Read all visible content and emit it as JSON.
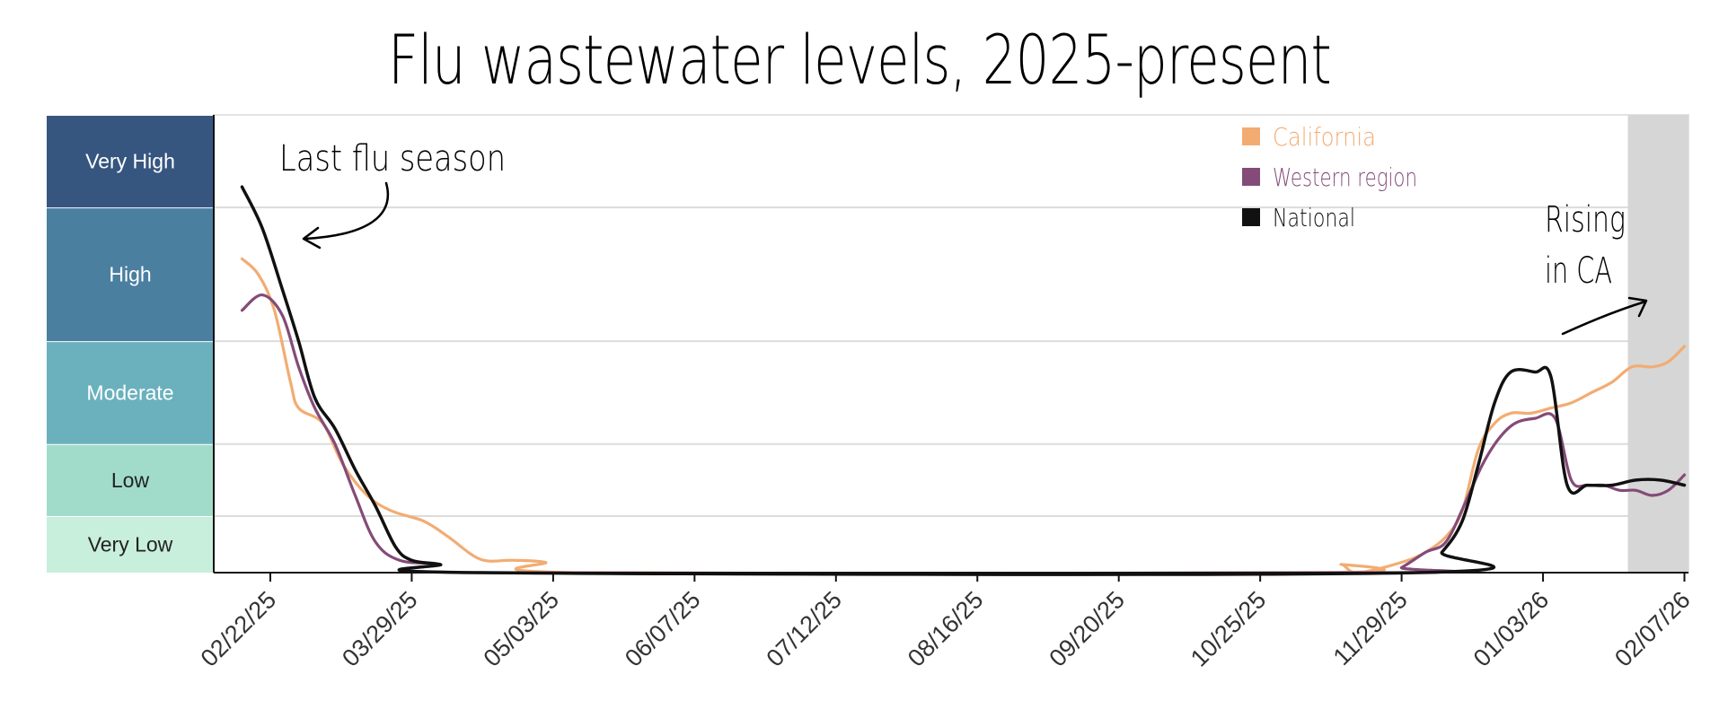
{
  "chart_data": {
    "type": "line",
    "title": "Flu wastewater levels, 2025-present",
    "xlabel": "",
    "ylabel": "",
    "x_start": "2025-02-08",
    "x_end": "2026-02-08",
    "y_range": [
      0,
      5
    ],
    "x_ticks": [
      "02/22/25",
      "03/29/25",
      "05/03/25",
      "06/07/25",
      "07/12/25",
      "08/16/25",
      "09/20/25",
      "10/25/25",
      "11/29/25",
      "01/03/26",
      "02/07/26"
    ],
    "levels": [
      {
        "label": "Very Low",
        "min": 0.0,
        "max": 0.55,
        "color": "#c8efdc",
        "text_color": "#222222"
      },
      {
        "label": "Low",
        "min": 0.55,
        "max": 1.25,
        "color": "#a1dcca",
        "text_color": "#222222"
      },
      {
        "label": "Moderate",
        "min": 1.25,
        "max": 2.25,
        "color": "#6ab1bd",
        "text_color": "#ffffff"
      },
      {
        "label": "High",
        "min": 2.25,
        "max": 3.55,
        "color": "#4a7fa0",
        "text_color": "#ffffff"
      },
      {
        "label": "Very High",
        "min": 3.55,
        "max": 4.45,
        "color": "#365680",
        "text_color": "#ffffff"
      }
    ],
    "shaded_period": {
      "start": "2026-01-24",
      "end": "2026-02-08",
      "color": "#d6d6d6"
    },
    "legend_position": "top-right",
    "grid": "horizontal",
    "series": [
      {
        "name": "California",
        "color": "#f2ac72",
        "points": [
          [
            "2025-02-15",
            3.05
          ],
          [
            "2025-02-19",
            2.9
          ],
          [
            "2025-02-23",
            2.55
          ],
          [
            "2025-02-27",
            1.85
          ],
          [
            "2025-03-01",
            1.6
          ],
          [
            "2025-03-07",
            1.45
          ],
          [
            "2025-03-12",
            1.05
          ],
          [
            "2025-03-18",
            0.75
          ],
          [
            "2025-03-24",
            0.6
          ],
          [
            "2025-04-01",
            0.5
          ],
          [
            "2025-04-07",
            0.35
          ],
          [
            "2025-04-15",
            0.13
          ],
          [
            "2025-04-23",
            0.12
          ],
          [
            "2025-05-01",
            0.1
          ],
          [
            "2025-05-10",
            0.0
          ],
          [
            "2025-11-10",
            0.0
          ],
          [
            "2025-11-14",
            0.08
          ],
          [
            "2025-11-18",
            0.0
          ],
          [
            "2025-11-29",
            0.1
          ],
          [
            "2025-12-05",
            0.2
          ],
          [
            "2025-12-10",
            0.35
          ],
          [
            "2025-12-14",
            0.6
          ],
          [
            "2025-12-18",
            1.2
          ],
          [
            "2025-12-22",
            1.45
          ],
          [
            "2025-12-26",
            1.55
          ],
          [
            "2025-12-31",
            1.55
          ],
          [
            "2026-01-05",
            1.6
          ],
          [
            "2026-01-10",
            1.65
          ],
          [
            "2026-01-15",
            1.75
          ],
          [
            "2026-01-20",
            1.85
          ],
          [
            "2026-01-25",
            2.0
          ],
          [
            "2026-01-30",
            2.0
          ],
          [
            "2026-02-03",
            2.05
          ],
          [
            "2026-02-07",
            2.2
          ]
        ]
      },
      {
        "name": "Western region",
        "color": "#844b78",
        "points": [
          [
            "2025-02-15",
            2.55
          ],
          [
            "2025-02-20",
            2.7
          ],
          [
            "2025-02-25",
            2.5
          ],
          [
            "2025-03-01",
            2.0
          ],
          [
            "2025-03-05",
            1.6
          ],
          [
            "2025-03-10",
            1.25
          ],
          [
            "2025-03-15",
            0.75
          ],
          [
            "2025-03-20",
            0.3
          ],
          [
            "2025-03-26",
            0.12
          ],
          [
            "2025-04-05",
            0.08
          ],
          [
            "2025-04-15",
            0.0
          ],
          [
            "2025-11-25",
            0.0
          ],
          [
            "2025-11-29",
            0.05
          ],
          [
            "2025-12-05",
            0.2
          ],
          [
            "2025-12-10",
            0.3
          ],
          [
            "2025-12-15",
            0.7
          ],
          [
            "2025-12-19",
            1.05
          ],
          [
            "2025-12-23",
            1.3
          ],
          [
            "2025-12-27",
            1.45
          ],
          [
            "2026-01-01",
            1.5
          ],
          [
            "2026-01-06",
            1.5
          ],
          [
            "2026-01-10",
            0.9
          ],
          [
            "2026-01-14",
            0.85
          ],
          [
            "2026-01-18",
            0.85
          ],
          [
            "2026-01-22",
            0.8
          ],
          [
            "2026-01-26",
            0.8
          ],
          [
            "2026-01-30",
            0.75
          ],
          [
            "2026-02-03",
            0.8
          ],
          [
            "2026-02-07",
            0.95
          ]
        ]
      },
      {
        "name": "National",
        "color": "#111111",
        "points": [
          [
            "2025-02-15",
            3.75
          ],
          [
            "2025-02-20",
            3.35
          ],
          [
            "2025-02-25",
            2.75
          ],
          [
            "2025-03-01",
            2.25
          ],
          [
            "2025-03-05",
            1.7
          ],
          [
            "2025-03-10",
            1.4
          ],
          [
            "2025-03-15",
            1.0
          ],
          [
            "2025-03-20",
            0.65
          ],
          [
            "2025-03-25",
            0.25
          ],
          [
            "2025-03-29",
            0.12
          ],
          [
            "2025-04-05",
            0.08
          ],
          [
            "2025-04-15",
            0.0
          ],
          [
            "2025-12-03",
            0.0
          ],
          [
            "2025-12-09",
            0.2
          ],
          [
            "2025-12-14",
            0.5
          ],
          [
            "2025-12-18",
            1.05
          ],
          [
            "2025-12-22",
            1.65
          ],
          [
            "2025-12-26",
            1.95
          ],
          [
            "2026-01-01",
            1.95
          ],
          [
            "2026-01-05",
            1.9
          ],
          [
            "2026-01-09",
            0.85
          ],
          [
            "2026-01-14",
            0.85
          ],
          [
            "2026-01-20",
            0.85
          ],
          [
            "2026-01-26",
            0.9
          ],
          [
            "2026-02-01",
            0.9
          ],
          [
            "2026-02-07",
            0.85
          ]
        ]
      }
    ],
    "annotations": [
      {
        "text": "Last flu season",
        "lines": [
          "Last flu season"
        ]
      },
      {
        "text": "Rising in CA",
        "lines": [
          "Rising",
          "in CA"
        ]
      }
    ]
  }
}
